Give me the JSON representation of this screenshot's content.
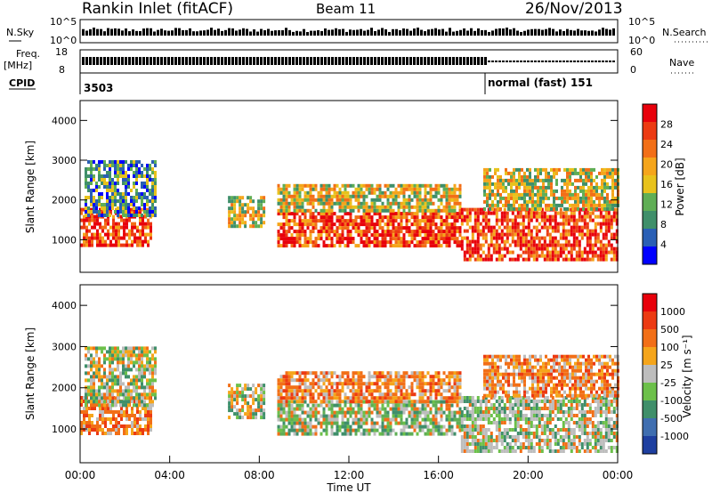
{
  "header": {
    "title": "Rankin Inlet (fitACF)",
    "beam": "Beam 11",
    "date": "26/Nov/2013"
  },
  "status_panels": {
    "nsky_label": "N.Sky",
    "nsky_ticks": [
      "10^5",
      "10^0"
    ],
    "nsearch_label": "N.Search",
    "nsearch_ticks": [
      "10^5",
      "10^0"
    ],
    "freq_label_1": "Freq.",
    "freq_label_2": "[MHz]",
    "freq_ticks": [
      "18",
      "8"
    ],
    "nave_label": "Nave",
    "nave_ticks": [
      "60",
      "0"
    ],
    "cpid_label": "CPID",
    "cpid_value_1": "3503",
    "cpid_value_2": "normal (fast) 151"
  },
  "chart_data": [
    {
      "type": "heatmap",
      "quantity": "Power",
      "xlabel": "",
      "ylabel": "Slant Range [km]",
      "ylim": [
        180,
        4500
      ],
      "yticks": [
        "1000",
        "2000",
        "3000",
        "4000"
      ],
      "xlim_hours": [
        0,
        24
      ],
      "colorbar_label": "Power [dB]",
      "colorbar_ticks": [
        "28",
        "24",
        "20",
        "16",
        "12",
        "8",
        "4"
      ],
      "colorbar_colors": [
        "#0000ff",
        "#2a5fb5",
        "#3f8f6a",
        "#5fae55",
        "#e8c21c",
        "#f5a51b",
        "#f26f17",
        "#ec3a12",
        "#e8000b"
      ],
      "echo_regions": [
        {
          "t0": 0.0,
          "t1": 3.2,
          "r0": 850,
          "r1": 1800,
          "level": "high"
        },
        {
          "t0": 0.2,
          "t1": 3.4,
          "r0": 1600,
          "r1": 3000,
          "level": "low"
        },
        {
          "t0": 6.6,
          "t1": 8.2,
          "r0": 1300,
          "r1": 2100,
          "level": "mid"
        },
        {
          "t0": 8.8,
          "t1": 17.0,
          "r0": 850,
          "r1": 1700,
          "level": "high"
        },
        {
          "t0": 8.8,
          "t1": 17.0,
          "r0": 1700,
          "r1": 2400,
          "level": "mid"
        },
        {
          "t0": 17.0,
          "t1": 24.0,
          "r0": 500,
          "r1": 1800,
          "level": "high"
        },
        {
          "t0": 18.0,
          "t1": 24.0,
          "r0": 1800,
          "r1": 2800,
          "level": "mid"
        }
      ]
    },
    {
      "type": "heatmap",
      "quantity": "Velocity",
      "xlabel": "Time UT",
      "ylabel": "Slant Range [km]",
      "ylim": [
        180,
        4500
      ],
      "yticks": [
        "1000",
        "2000",
        "3000",
        "4000"
      ],
      "xticks": [
        "00:00",
        "04:00",
        "08:00",
        "12:00",
        "16:00",
        "20:00",
        "00:00"
      ],
      "xlim_hours": [
        0,
        24
      ],
      "colorbar_label": "Velocity [m s⁻¹]",
      "colorbar_ticks": [
        "1000",
        "500",
        "100",
        "25",
        "-25",
        "-100",
        "-500",
        "-1000"
      ],
      "colorbar_colors": [
        "#1e3fa0",
        "#3f6eb0",
        "#3f8f6a",
        "#6cc04a",
        "#bdbdbd",
        "#f5a51b",
        "#f26f17",
        "#ec3a12",
        "#e8000b"
      ],
      "echo_regions": [
        {
          "t0": 0.0,
          "t1": 3.2,
          "r0": 850,
          "r1": 1800,
          "level": "orange"
        },
        {
          "t0": 0.2,
          "t1": 3.4,
          "r0": 1600,
          "r1": 3000,
          "level": "mixed"
        },
        {
          "t0": 6.6,
          "t1": 8.2,
          "r0": 1300,
          "r1": 2100,
          "level": "mixed"
        },
        {
          "t0": 8.8,
          "t1": 17.0,
          "r0": 850,
          "r1": 1700,
          "level": "green"
        },
        {
          "t0": 8.8,
          "t1": 17.0,
          "r0": 1700,
          "r1": 2400,
          "level": "orange"
        },
        {
          "t0": 17.0,
          "t1": 24.0,
          "r0": 500,
          "r1": 1800,
          "level": "grey"
        },
        {
          "t0": 18.0,
          "t1": 24.0,
          "r0": 1800,
          "r1": 2800,
          "level": "orange"
        }
      ]
    }
  ]
}
